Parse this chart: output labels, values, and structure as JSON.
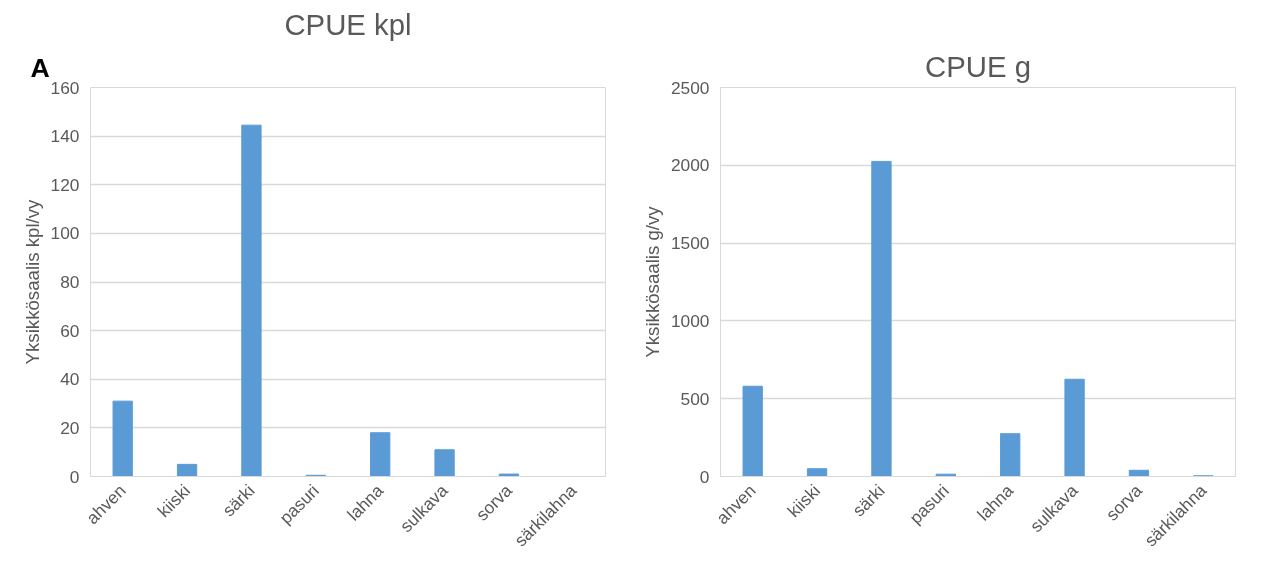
{
  "chart_data": [
    {
      "type": "bar",
      "title": "CPUE kpl",
      "ylabel": "Yksikkösaalis kpl/vy",
      "annotations": [
        "A"
      ],
      "categories": [
        "ahven",
        "kiiski",
        "särki",
        "pasuri",
        "lahna",
        "sulkava",
        "sorva",
        "särkilahna"
      ],
      "values": [
        31,
        5,
        144.5,
        0.5,
        18,
        11,
        1,
        0
      ],
      "color": "#5b9bd5",
      "ylim": [
        0,
        160
      ],
      "yticks": [
        0,
        20,
        40,
        60,
        80,
        100,
        120,
        140,
        160
      ],
      "grid": "y"
    },
    {
      "type": "bar",
      "title": "CPUE g",
      "ylabel": "Yksikkösaalis g/vy",
      "categories": [
        "ahven",
        "kiiski",
        "särki",
        "pasuri",
        "lahna",
        "sulkava",
        "sorva",
        "särkilahna"
      ],
      "values": [
        580,
        50,
        2025,
        15,
        275,
        625,
        40,
        5
      ],
      "color": "#5b9bd5",
      "ylim": [
        0,
        2500
      ],
      "yticks": [
        0,
        500,
        1000,
        1500,
        2000,
        2500
      ],
      "grid": "y"
    }
  ]
}
